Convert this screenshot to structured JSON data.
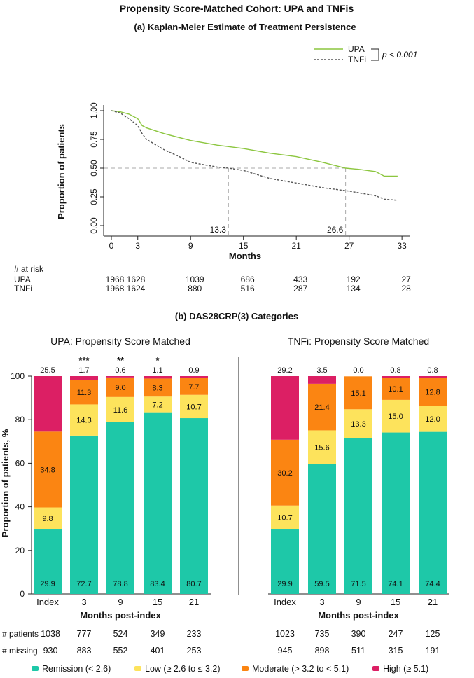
{
  "title": "Propensity Score-Matched Cohort: UPA and TNFis",
  "chart_data": [
    {
      "type": "line",
      "title": "(a) Kaplan-Meier Estimate of Treatment Persistence",
      "xlabel": "Months",
      "ylabel": "Proportion of patients",
      "xlim": [
        0,
        33
      ],
      "ylim": [
        0,
        1
      ],
      "xticks": [
        "0",
        "3",
        "9",
        "15",
        "21",
        "27",
        "33"
      ],
      "yticks": [
        "0.00",
        "0.25",
        "0.50",
        "0.75",
        "1.00"
      ],
      "series": [
        {
          "name": "UPA",
          "color": "#8cc63f",
          "style": "solid",
          "points": [
            [
              0,
              1
            ],
            [
              1,
              0.99
            ],
            [
              2,
              0.97
            ],
            [
              3,
              0.93
            ],
            [
              3.5,
              0.87
            ],
            [
              4,
              0.85
            ],
            [
              6,
              0.8
            ],
            [
              9,
              0.74
            ],
            [
              12,
              0.7
            ],
            [
              15,
              0.67
            ],
            [
              18,
              0.63
            ],
            [
              21,
              0.6
            ],
            [
              24,
              0.55
            ],
            [
              26.6,
              0.5
            ],
            [
              28,
              0.49
            ],
            [
              30,
              0.47
            ],
            [
              31,
              0.43
            ],
            [
              32.5,
              0.43
            ]
          ]
        },
        {
          "name": "TNFi",
          "color": "#555555",
          "style": "dashed",
          "points": [
            [
              0,
              1
            ],
            [
              1,
              0.98
            ],
            [
              2,
              0.93
            ],
            [
              3,
              0.87
            ],
            [
              3.5,
              0.8
            ],
            [
              4,
              0.75
            ],
            [
              6,
              0.66
            ],
            [
              8,
              0.59
            ],
            [
              9,
              0.55
            ],
            [
              12,
              0.51
            ],
            [
              13.3,
              0.5
            ],
            [
              15,
              0.48
            ],
            [
              18,
              0.41
            ],
            [
              21,
              0.37
            ],
            [
              24,
              0.33
            ],
            [
              27,
              0.3
            ],
            [
              30,
              0.26
            ],
            [
              31,
              0.23
            ],
            [
              32.5,
              0.22
            ]
          ]
        }
      ],
      "medians": [
        {
          "label": "13.3",
          "value": 13.3
        },
        {
          "label": "26.6",
          "value": 26.6
        }
      ],
      "pvalue": "p < 0.001",
      "at_risk": {
        "header": "# at risk",
        "months": [
          0,
          3,
          9,
          15,
          21,
          27,
          33
        ],
        "rows": [
          {
            "name": "UPA",
            "values": [
              "1968",
              "1628",
              "1039",
              "686",
              "433",
              "192",
              "27"
            ]
          },
          {
            "name": "TNFi",
            "values": [
              "1968",
              "1624",
              "880",
              "516",
              "287",
              "134",
              "28"
            ]
          }
        ]
      }
    },
    {
      "type": "bar",
      "title": "(b) DAS28CRP(3) Categories",
      "ylabel": "Proportion of patients, %",
      "xlabel": "Months post-index",
      "ylim": [
        0,
        100
      ],
      "yticks": [
        "0",
        "20",
        "40",
        "60",
        "80",
        "100"
      ],
      "legend": [
        {
          "name": "Remission (< 2.6)",
          "color": "#1ec8a8"
        },
        {
          "name": "Low (≥ 2.6 to ≤ 3.2)",
          "color": "#fde35c"
        },
        {
          "name": "Moderate (> 3.2 to < 5.1)",
          "color": "#fb8512"
        },
        {
          "name": "High (≥ 5.1)",
          "color": "#dc1f64"
        }
      ],
      "row_labels": [
        "# patients",
        "# missing"
      ],
      "panels": [
        {
          "title": "UPA: Propensity Score Matched",
          "categories": [
            "Index",
            "3",
            "9",
            "15",
            "21"
          ],
          "values": [
            [
              29.9,
              9.8,
              34.8,
              25.5
            ],
            [
              72.7,
              14.3,
              11.3,
              1.7
            ],
            [
              78.8,
              11.6,
              9.0,
              0.6
            ],
            [
              83.4,
              7.2,
              8.3,
              1.1
            ],
            [
              80.7,
              10.7,
              7.7,
              0.9
            ]
          ],
          "labels": [
            [
              "29.9",
              "9.8",
              "34.8",
              "25.5"
            ],
            [
              "72.7",
              "14.3",
              "11.3",
              "1.7"
            ],
            [
              "78.8",
              "11.6",
              "9.0",
              "0.6"
            ],
            [
              "83.4",
              "7.2",
              "8.3",
              "1.1"
            ],
            [
              "80.7",
              "10.7",
              "7.7",
              "0.9"
            ]
          ],
          "significance": [
            "",
            "***",
            "**",
            "*",
            ""
          ],
          "patients": [
            "1038",
            "777",
            "524",
            "349",
            "233"
          ],
          "missing": [
            "930",
            "883",
            "552",
            "401",
            "253"
          ]
        },
        {
          "title": "TNFi: Propensity Score Matched",
          "categories": [
            "Index",
            "3",
            "9",
            "15",
            "21"
          ],
          "values": [
            [
              29.9,
              10.7,
              30.2,
              29.2
            ],
            [
              59.5,
              15.6,
              21.4,
              3.5
            ],
            [
              71.5,
              13.3,
              15.1,
              0.0
            ],
            [
              74.1,
              15.0,
              10.1,
              0.8
            ],
            [
              74.4,
              12.0,
              12.8,
              0.8
            ]
          ],
          "labels": [
            [
              "29.9",
              "10.7",
              "30.2",
              "29.2"
            ],
            [
              "59.5",
              "15.6",
              "21.4",
              "3.5"
            ],
            [
              "71.5",
              "13.3",
              "15.1",
              "0.0"
            ],
            [
              "74.1",
              "15.0",
              "10.1",
              "0.8"
            ],
            [
              "74.4",
              "12.0",
              "12.8",
              "0.8"
            ]
          ],
          "significance": [
            "",
            "",
            "",
            "",
            ""
          ],
          "patients": [
            "1023",
            "735",
            "390",
            "247",
            "125"
          ],
          "missing": [
            "945",
            "898",
            "511",
            "315",
            "191"
          ]
        }
      ]
    }
  ]
}
